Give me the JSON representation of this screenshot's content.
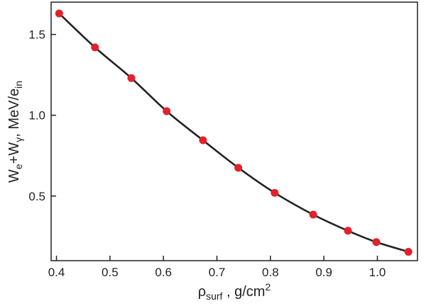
{
  "chart_data": {
    "type": "scatter",
    "title": "",
    "xlabel": {
      "main": "ρ",
      "sub": "surf",
      "rest": " , g/cm",
      "sup": "2"
    },
    "ylabel": {
      "p1": "W",
      "s1": "e",
      "p2": "+W",
      "s2": "γ",
      "p3": ", MeV/e",
      "s3": "in"
    },
    "xlim": [
      0.39,
      1.075
    ],
    "ylim": [
      0.1,
      1.7
    ],
    "xticks": [
      0.4,
      0.5,
      0.6,
      0.7,
      0.8,
      0.9,
      1.0
    ],
    "xtick_labels": [
      "0.4",
      "0.5",
      "0.6",
      "0.7",
      "0.8",
      "0.9",
      "1.0"
    ],
    "yticks": [
      0.5,
      1.0,
      1.5
    ],
    "ytick_labels": [
      "0.5",
      "1.0",
      "1.5"
    ],
    "grid": false,
    "series": [
      {
        "marker_color": "#e3202b",
        "line_color": "#222222",
        "x": [
          0.405,
          0.472,
          0.54,
          0.606,
          0.674,
          0.74,
          0.808,
          0.88,
          0.945,
          0.998,
          1.058
        ],
        "y": [
          1.63,
          1.42,
          1.23,
          1.025,
          0.845,
          0.675,
          0.52,
          0.385,
          0.285,
          0.215,
          0.155
        ]
      }
    ]
  }
}
